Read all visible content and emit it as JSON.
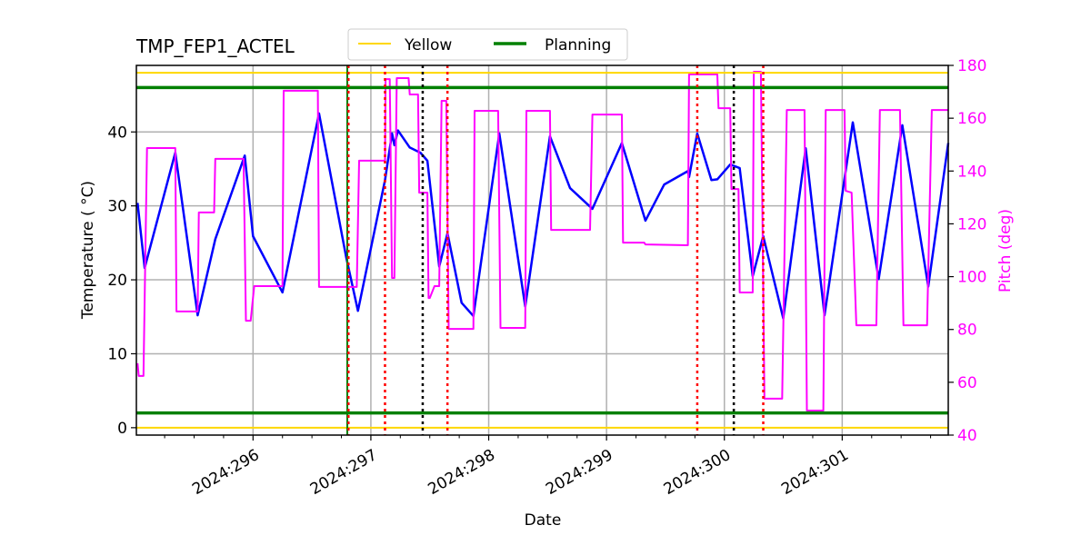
{
  "chart_data": {
    "type": "line",
    "title": "TMP_FEP1_ACTEL",
    "xlabel": "Date",
    "ylabel": "Temperature ( °C)",
    "y2label": "Pitch (deg)",
    "xlim": [
      295.01,
      301.9
    ],
    "ylim": [
      -1,
      49
    ],
    "y2lim": [
      40,
      180
    ],
    "x_ticks": [
      296,
      297,
      298,
      299,
      300,
      301
    ],
    "x_tick_labels": [
      "2024:296",
      "2024:297",
      "2024:298",
      "2024:299",
      "2024:300",
      "2024:301"
    ],
    "x_minor_tick_step": 0.25,
    "y_ticks": [
      0,
      10,
      20,
      30,
      40
    ],
    "y2_ticks": [
      40,
      60,
      80,
      100,
      120,
      140,
      160,
      180
    ],
    "grid": true,
    "legend": {
      "placement": "top-center-outside",
      "entries": [
        {
          "name": "Yellow",
          "color": "#ffd700"
        },
        {
          "name": "Planning",
          "color": "#008000"
        }
      ]
    },
    "limit_lines": [
      {
        "name": "Yellow",
        "values": [
          48,
          0
        ],
        "color": "#ffd700"
      },
      {
        "name": "Planning",
        "values": [
          46,
          2
        ],
        "color": "#008000"
      }
    ],
    "vertical_lines": [
      {
        "x": 296.8,
        "color": "#008000",
        "style": "solid"
      },
      {
        "x": 296.81,
        "color": "#ff0000",
        "style": "dotted"
      },
      {
        "x": 297.12,
        "color": "#ff0000",
        "style": "dotted"
      },
      {
        "x": 297.44,
        "color": "#000000",
        "style": "dotted"
      },
      {
        "x": 297.65,
        "color": "#ff0000",
        "style": "dotted"
      },
      {
        "x": 299.77,
        "color": "#ff0000",
        "style": "dotted"
      },
      {
        "x": 300.08,
        "color": "#000000",
        "style": "dotted"
      },
      {
        "x": 300.33,
        "color": "#ff0000",
        "style": "dotted"
      }
    ],
    "series": [
      {
        "axis": "left",
        "color": "#0000ff",
        "x": [
          295.02,
          295.08,
          295.34,
          295.53,
          295.68,
          295.93,
          296.0,
          296.25,
          296.56,
          296.79,
          296.89,
          297.12,
          297.18,
          297.2,
          297.23,
          297.33,
          297.42,
          297.48,
          297.58,
          297.65,
          297.77,
          297.87,
          298.09,
          298.31,
          298.52,
          298.69,
          298.88,
          299.13,
          299.33,
          299.49,
          299.69,
          299.7,
          299.77,
          299.89,
          299.94,
          300.05,
          300.13,
          300.24,
          300.33,
          300.5,
          300.69,
          300.85,
          301.09,
          301.31,
          301.51,
          301.73,
          301.9
        ],
        "y": [
          30.4,
          21.6,
          37.2,
          15.2,
          25.5,
          36.8,
          25.9,
          18.3,
          42.5,
          23.1,
          15.8,
          33.5,
          39.8,
          38.2,
          40.2,
          37.9,
          37.2,
          36.1,
          21.8,
          26.3,
          16.9,
          15.1,
          39.8,
          16.4,
          39.4,
          32.4,
          29.6,
          38.5,
          28.0,
          32.9,
          34.7,
          33.9,
          39.8,
          33.5,
          33.6,
          35.6,
          35.1,
          20.5,
          25.9,
          14.8,
          37.8,
          15.2,
          41.3,
          20.1,
          40.9,
          19.1,
          38.5
        ]
      },
      {
        "axis": "right",
        "color": "#ff00ff",
        "x": [
          295.02,
          295.03,
          295.07,
          295.1,
          295.34,
          295.35,
          295.53,
          295.54,
          295.67,
          295.68,
          295.92,
          295.94,
          295.98,
          296.01,
          296.25,
          296.26,
          296.55,
          296.56,
          296.88,
          296.9,
          297.12,
          297.125,
          297.16,
          297.18,
          297.2,
          297.22,
          297.32,
          297.33,
          297.4,
          297.41,
          297.48,
          297.49,
          297.5,
          297.54,
          297.58,
          297.6,
          297.64,
          297.66,
          297.87,
          297.88,
          298.08,
          298.1,
          298.31,
          298.32,
          298.52,
          298.53,
          298.86,
          298.88,
          299.13,
          299.14,
          299.32,
          299.33,
          299.69,
          299.7,
          299.94,
          299.95,
          300.05,
          300.06,
          300.12,
          300.13,
          300.24,
          300.25,
          300.31,
          300.34,
          300.49,
          300.53,
          300.68,
          300.7,
          300.84,
          300.86,
          301.02,
          301.03,
          301.08,
          301.12,
          301.29,
          301.32,
          301.49,
          301.52,
          301.72,
          301.76,
          301.9
        ],
        "y": [
          67.2,
          62.4,
          62.4,
          148.7,
          148.7,
          86.8,
          86.8,
          124.3,
          124.3,
          144.6,
          144.6,
          83.3,
          83.3,
          96.4,
          96.4,
          170.4,
          170.4,
          96.1,
          96.1,
          143.9,
          143.9,
          174.8,
          174.8,
          99.5,
          99.5,
          175.2,
          175.2,
          169.0,
          169.0,
          131.8,
          131.8,
          91.9,
          91.9,
          96.4,
          96.4,
          166.6,
          166.6,
          80.2,
          80.2,
          162.8,
          162.8,
          80.6,
          80.6,
          162.8,
          162.8,
          117.7,
          117.7,
          161.4,
          161.4,
          112.9,
          112.9,
          112.2,
          111.9,
          176.6,
          176.6,
          163.8,
          163.8,
          133.2,
          133.2,
          94.0,
          94.0,
          177.6,
          177.6,
          53.8,
          53.8,
          163.1,
          163.1,
          49.3,
          49.3,
          163.1,
          163.1,
          132.5,
          131.8,
          81.6,
          81.6,
          163.1,
          163.1,
          81.6,
          81.6,
          163.1,
          163.1
        ]
      }
    ]
  }
}
